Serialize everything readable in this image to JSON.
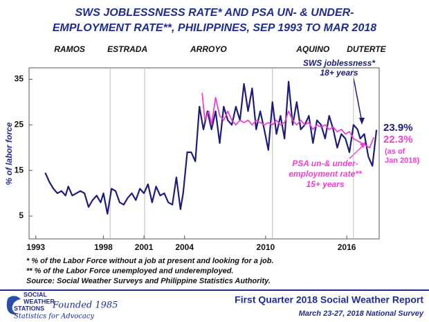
{
  "chart_data": {
    "type": "line",
    "title_lines": [
      "SWS JOBLESSNESS RATE* AND PSA UN- & UNDER-",
      "EMPLOYMENT RATE**, PHILIPPINES, SEP 1993 TO MAR 2018"
    ],
    "y_label": "% of labor force",
    "xlim": [
      1992.5,
      2018.4
    ],
    "xticks": [
      1993,
      1998,
      2001,
      2004,
      2010,
      2016
    ],
    "ylim": [
      0,
      37.5
    ],
    "yticks": [
      5,
      15,
      25,
      35
    ],
    "grid": false,
    "eras": [
      {
        "name": "RAMOS",
        "start": 1992.5
      },
      {
        "name": "ESTRADA",
        "start": 1998.5
      },
      {
        "name": "ARROYO",
        "start": 2001.05
      },
      {
        "name": "AQUINO",
        "start": 2010.5
      },
      {
        "name": "DUTERTE",
        "start": 2016.5
      }
    ],
    "series": [
      {
        "name_lines": [
          "SWS joblessness*",
          "18+ years"
        ],
        "color": "#1c1c7c",
        "end_label": "23.9%",
        "x": [
          1993.7,
          1994.0,
          1994.3,
          1994.6,
          1994.9,
          1995.2,
          1995.4,
          1995.7,
          1996.0,
          1996.3,
          1996.6,
          1996.9,
          1997.2,
          1997.5,
          1997.8,
          1998.0,
          1998.3,
          1998.6,
          1998.9,
          1999.2,
          1999.5,
          1999.8,
          2000.1,
          2000.4,
          2000.7,
          2001.0,
          2001.3,
          2001.6,
          2001.9,
          2002.2,
          2002.5,
          2002.8,
          2003.1,
          2003.4,
          2003.7,
          2003.9,
          2004.2,
          2004.5,
          2004.8,
          2005.1,
          2005.4,
          2005.7,
          2006.0,
          2006.3,
          2006.6,
          2006.9,
          2007.2,
          2007.5,
          2007.8,
          2008.1,
          2008.4,
          2008.7,
          2009.0,
          2009.3,
          2009.6,
          2009.9,
          2010.2,
          2010.5,
          2010.8,
          2011.1,
          2011.4,
          2011.7,
          2012.0,
          2012.3,
          2012.6,
          2012.9,
          2013.2,
          2013.5,
          2013.8,
          2014.1,
          2014.4,
          2014.7,
          2015.0,
          2015.3,
          2015.6,
          2015.9,
          2016.2,
          2016.5,
          2016.8,
          2017.0,
          2017.3,
          2017.6,
          2017.9,
          2018.2
        ],
        "values": [
          14.5,
          12.5,
          11,
          10,
          10.5,
          9.5,
          11.5,
          9.5,
          10,
          10.5,
          10,
          7,
          8.5,
          9.5,
          8,
          10,
          5.5,
          11,
          10.5,
          8,
          7.5,
          9,
          10,
          8.5,
          11,
          10,
          12,
          8,
          11.5,
          9.5,
          10,
          8,
          7.5,
          13.5,
          6.5,
          10,
          19,
          19,
          17,
          29,
          24,
          28,
          24,
          28,
          21,
          29,
          26,
          25,
          29,
          26,
          34,
          28,
          33,
          24,
          28,
          24,
          19.5,
          30,
          23,
          27,
          22,
          34.5,
          25,
          30,
          24,
          25,
          27,
          21,
          26,
          25,
          22,
          27,
          24,
          20,
          23,
          22,
          19,
          25,
          24,
          22,
          23,
          18,
          16,
          23.9
        ]
      },
      {
        "name_lines": [
          "PSA un-& under-",
          "employment rate**",
          "15+ years"
        ],
        "color": "#ee3fcf",
        "end_label": "22.3%",
        "end_note_lines": [
          "(as of",
          "Jan 2018)"
        ],
        "x": [
          2005.3,
          2005.5,
          2005.8,
          2006.0,
          2006.3,
          2006.6,
          2006.9,
          2007.2,
          2007.5,
          2007.8,
          2008.1,
          2008.4,
          2008.7,
          2009.0,
          2009.3,
          2009.6,
          2009.9,
          2010.2,
          2010.5,
          2010.8,
          2011.1,
          2011.4,
          2011.7,
          2012.0,
          2012.3,
          2012.6,
          2012.9,
          2013.2,
          2013.5,
          2013.8,
          2014.1,
          2014.4,
          2014.7,
          2015.0,
          2015.3,
          2015.6,
          2015.9,
          2016.2,
          2016.5,
          2016.8,
          2017.1,
          2017.4,
          2017.7,
          2018.0
        ],
        "values": [
          32,
          26,
          28,
          25,
          31,
          27,
          26,
          28,
          26,
          25,
          26,
          25.5,
          26,
          25,
          26,
          25.5,
          25,
          25.5,
          25,
          26,
          25,
          25.5,
          28,
          26,
          25,
          26,
          25,
          25.5,
          24,
          25,
          24.5,
          25,
          24,
          24.5,
          23.5,
          24,
          23,
          23.5,
          22,
          21.5,
          21,
          20.5,
          20,
          22.3
        ]
      }
    ],
    "footnotes": [
      "* % of the Labor Force without a job at present and looking for a job.",
      "** % of the Labor Force unemployed and underemployed.",
      "Source: Social Weather Surveys and Philippine Statistics Authority."
    ]
  },
  "footer": {
    "logo_lines": [
      "SOCIAL",
      "WEATHER",
      "STATIONS"
    ],
    "founded": "Founded 1985",
    "tagline": "Statistics for Advocacy",
    "report": "First Quarter 2018 Social Weather Report",
    "survey": "March 23-27, 2018 National Survey"
  }
}
